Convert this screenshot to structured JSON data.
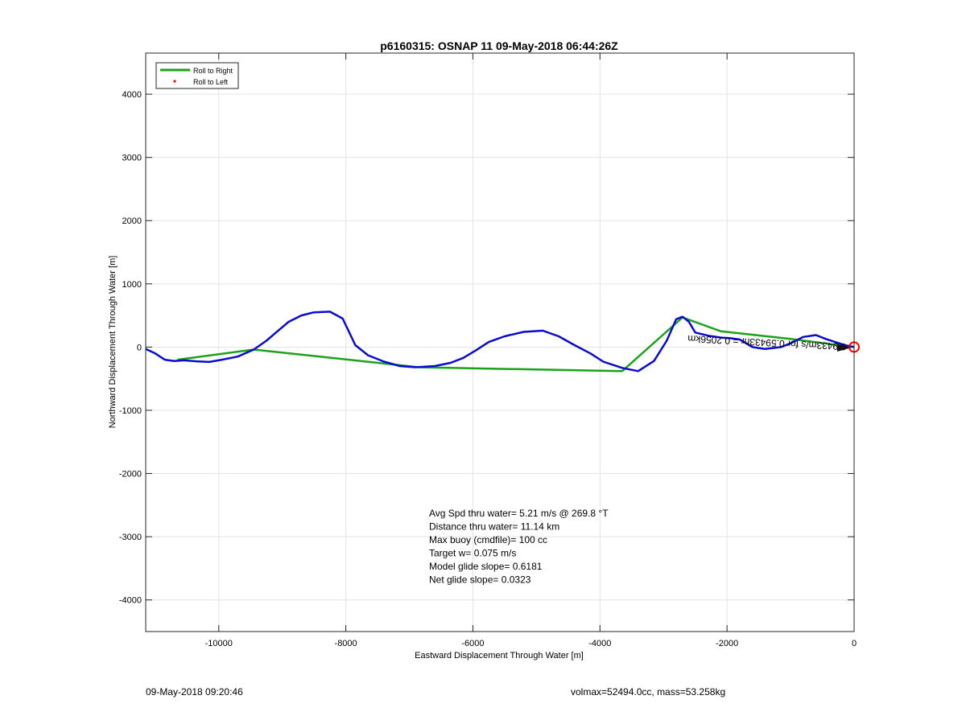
{
  "footer": {
    "left": "09-May-2018 09:20:46",
    "right": "volmax=52494.0cc, mass=53.258kg"
  },
  "chart_data": {
    "type": "line",
    "title": "p6160315: OSNAP 11 09-May-2018 06:44:26Z",
    "xlabel": "Eastward Displacement Through Water [m]",
    "ylabel": "Northward Displacement Through Water [m]",
    "xlim": [
      -11150,
      0
    ],
    "ylim": [
      -4500,
      4650
    ],
    "xticks": [
      -10000,
      -8000,
      -6000,
      -4000,
      -2000,
      0
    ],
    "yticks": [
      -4000,
      -3000,
      -2000,
      -1000,
      0,
      1000,
      2000,
      3000,
      4000
    ],
    "grid": true,
    "legend_position": "top-left",
    "legend": [
      {
        "label": "Roll to Right",
        "color": "#1aa31a",
        "marker": "line"
      },
      {
        "label": "Roll to Left",
        "color": "#ff0000",
        "marker": "dot"
      }
    ],
    "series": [
      {
        "name": "Roll to Right",
        "color": "#1aa31a",
        "x": [
          -10650,
          -9450,
          -6850,
          -3650,
          -2700,
          -2100,
          -1000,
          0
        ],
        "y": [
          -200,
          -40,
          -320,
          -380,
          470,
          250,
          130,
          0
        ]
      },
      {
        "color": "#0a0ad0",
        "x": [
          -11150,
          -11000,
          -10850,
          -10700,
          -10550,
          -10350,
          -10150,
          -9950,
          -9700,
          -9450,
          -9250,
          -9100,
          -8900,
          -8700,
          -8500,
          -8250,
          -8050,
          -7850,
          -7650,
          -7400,
          -7150,
          -6900,
          -6600,
          -6350,
          -6150,
          -5950,
          -5750,
          -5500,
          -5200,
          -4900,
          -4650,
          -4400,
          -4150,
          -3950,
          -3650,
          -3400,
          -3150,
          -2950,
          -2800,
          -2700,
          -2600,
          -2500,
          -2300,
          -2100,
          -1950,
          -1800,
          -1600,
          -1400,
          -1150,
          -1000,
          -800,
          -600,
          -450,
          -300,
          -150,
          0
        ],
        "y": [
          -30,
          -100,
          -200,
          -220,
          -210,
          -225,
          -235,
          -200,
          -150,
          -40,
          100,
          230,
          400,
          500,
          550,
          560,
          450,
          30,
          -130,
          -230,
          -300,
          -320,
          -300,
          -250,
          -170,
          -50,
          80,
          170,
          240,
          260,
          170,
          30,
          -100,
          -230,
          -330,
          -380,
          -220,
          100,
          440,
          480,
          400,
          230,
          180,
          150,
          140,
          120,
          0,
          -30,
          0,
          60,
          160,
          190,
          130,
          80,
          30,
          0
        ]
      }
    ],
    "end_marker": {
      "x": 0,
      "y": 0,
      "color": "#ff0000"
    },
    "annotations": [
      "Avg Spd thru water=  5.21 m/s @ 269.8 °T",
      "Distance thru water= 11.14 km",
      "Max buoy (cmdfile)= 100 cc",
      "Target w= 0.075 m/s",
      "Model glide slope= 0.6181",
      "Net glide slope= 0.0323"
    ],
    "rotated_label": "0.9433m/s for 0.59433hr = 0.2056km"
  }
}
